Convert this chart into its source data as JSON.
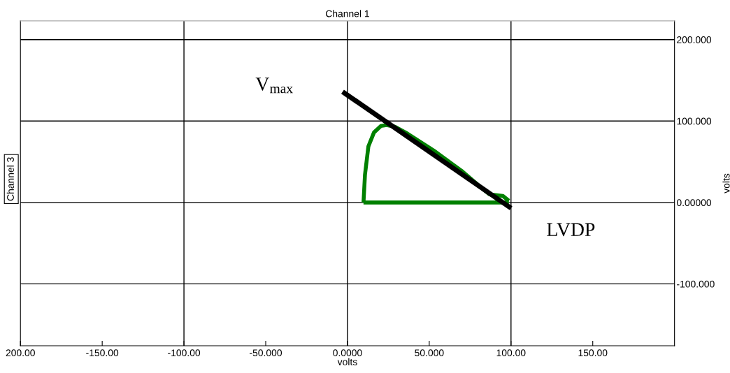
{
  "chart_data": {
    "type": "line",
    "title": "Channel 1",
    "xlabel": "volts",
    "ylabel": "volts",
    "annotations": [
      "Channel 3",
      "V$_{max}$",
      "LVDP"
    ],
    "series": [
      {
        "color": "#008000",
        "x": [
          9.8,
          10.7,
          12.8,
          16.2,
          20.5,
          24,
          29,
          35.5,
          52.6,
          69.7,
          82.5,
          86.8,
          95,
          98.7
        ],
        "values": [
          0,
          34,
          69,
          86,
          94,
          95,
          93,
          86,
          64,
          39,
          17,
          10,
          8,
          2
        ]
      },
      {
        "color": "#008000",
        "x": [
          9.8,
          98.7
        ],
        "values": [
          0,
          0
        ]
      },
      {
        "color": "#000000",
        "x": [
          -3,
          100
        ],
        "values": [
          136,
          -7
        ]
      }
    ],
    "xlim": [
      -200,
      200
    ],
    "ylim": [
      -176,
      223
    ],
    "xticks": [
      {
        "value": -200,
        "label": "200.00"
      },
      {
        "value": -150,
        "label": "-150.00"
      },
      {
        "value": -100,
        "label": "-100.00"
      },
      {
        "value": -50,
        "label": "-50.000"
      },
      {
        "value": 0,
        "label": "0.0000"
      },
      {
        "value": 50,
        "label": "50.000"
      },
      {
        "value": 100,
        "label": "100.00"
      },
      {
        "value": 150,
        "label": "150.00"
      }
    ],
    "yticks": [
      {
        "value": -100,
        "label": "-100.000"
      },
      {
        "value": 0,
        "label": "0.00000"
      },
      {
        "value": 100,
        "label": "100.000"
      },
      {
        "value": 200,
        "label": "200.000"
      }
    ],
    "grid": true,
    "marker": "none",
    "line_style": "solid"
  }
}
